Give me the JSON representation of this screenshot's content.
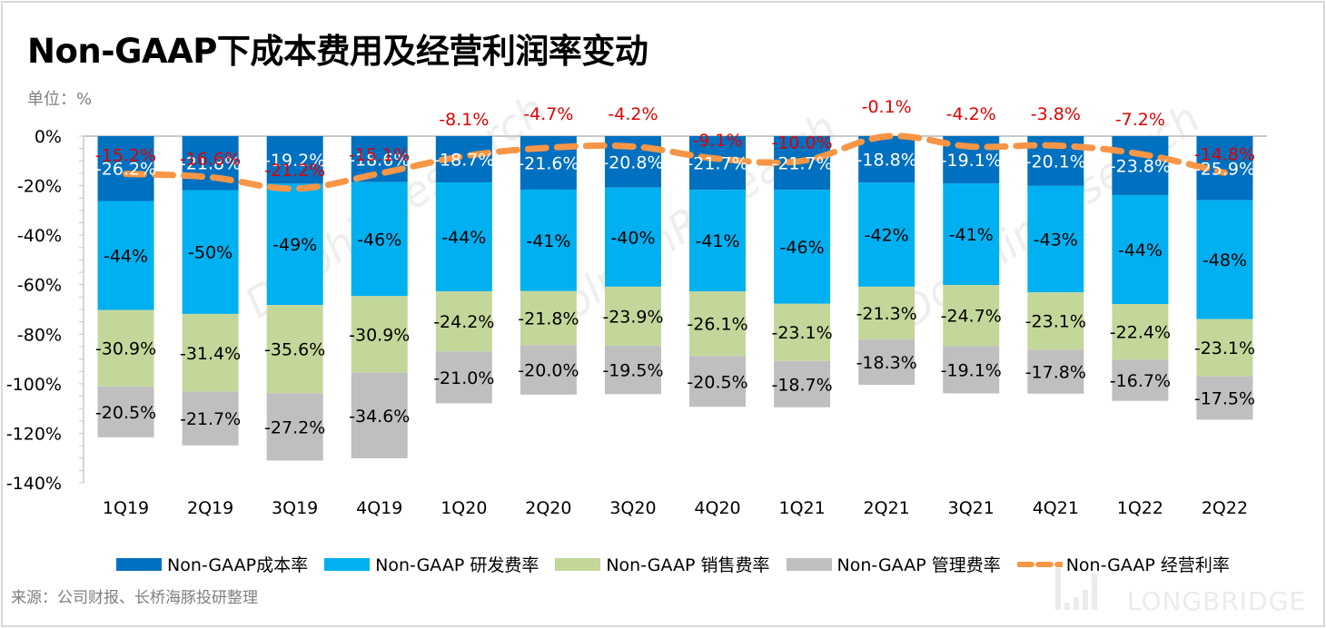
{
  "title": "Non-GAAP下成本费用及经营利润率变动",
  "unit_label": "单位：%",
  "source": "来源：公司财报、长桥海豚投研整理",
  "watermark": "LONGBRIDGE",
  "colors": {
    "cost": "#0070c0",
    "rd": "#00b0f0",
    "sales": "#c4d79b",
    "admin": "#bfbfbf",
    "op_margin": "#f79646",
    "op_label": "#e00000"
  },
  "chart_data": {
    "type": "bar",
    "stacked": true,
    "title": "Non-GAAP下成本费用及经营利润率变动",
    "xlabel": "",
    "ylabel": "单位：%",
    "ylim": [
      -140,
      0
    ],
    "yticks": [
      "0%",
      "-20%",
      "-40%",
      "-60%",
      "-80%",
      "-100%",
      "-120%",
      "-140%"
    ],
    "ytick_values": [
      0,
      -20,
      -40,
      -60,
      -80,
      -100,
      -120,
      -140
    ],
    "categories": [
      "1Q19",
      "2Q19",
      "3Q19",
      "4Q19",
      "1Q20",
      "2Q20",
      "3Q20",
      "4Q20",
      "1Q21",
      "2Q21",
      "3Q21",
      "4Q21",
      "1Q22",
      "2Q22"
    ],
    "series": [
      {
        "name": "Non-GAAP成本率",
        "kind": "bar",
        "values": [
          -26.2,
          -21.8,
          -19.2,
          -18.6,
          -18.7,
          -21.6,
          -20.8,
          -21.7,
          -21.7,
          -18.8,
          -19.1,
          -20.1,
          -23.8,
          -25.9
        ],
        "labels": [
          "-26.2%",
          "-21.8%",
          "-19.2%",
          "-18.6%",
          "-18.7%",
          "-21.6%",
          "-20.8%",
          "-21.7%",
          "-21.7%",
          "-18.8%",
          "-19.1%",
          "-20.1%",
          "-23.8%",
          "-25.9%"
        ]
      },
      {
        "name": "Non-GAAP 研发费率",
        "kind": "bar",
        "values": [
          -44,
          -50,
          -49,
          -46,
          -44,
          -41,
          -40,
          -41,
          -46,
          -42,
          -41,
          -43,
          -44,
          -48
        ],
        "labels": [
          "-44%",
          "-50%",
          "-49%",
          "-46%",
          "-44%",
          "-41%",
          "-40%",
          "-41%",
          "-46%",
          "-42%",
          "-41%",
          "-43%",
          "-44%",
          "-48%"
        ]
      },
      {
        "name": "Non-GAAP 销售费率",
        "kind": "bar",
        "values": [
          -30.9,
          -31.4,
          -35.6,
          -30.9,
          -24.2,
          -21.8,
          -23.9,
          -26.1,
          -23.1,
          -21.3,
          -24.7,
          -23.1,
          -22.4,
          -23.1
        ],
        "labels": [
          "-30.9%",
          "-31.4%",
          "-35.6%",
          "-30.9%",
          "-24.2%",
          "-21.8%",
          "-23.9%",
          "-26.1%",
          "-23.1%",
          "-21.3%",
          "-24.7%",
          "-23.1%",
          "-22.4%",
          "-23.1%"
        ]
      },
      {
        "name": "Non-GAAP 管理费率",
        "kind": "bar",
        "values": [
          -20.5,
          -21.7,
          -27.2,
          -34.6,
          -21.0,
          -20.0,
          -19.5,
          -20.5,
          -18.7,
          -18.3,
          -19.1,
          -17.8,
          -16.7,
          -17.5
        ],
        "labels": [
          "-20.5%",
          "-21.7%",
          "-27.2%",
          "-34.6%",
          "-21.0%",
          "-20.0%",
          "-19.5%",
          "-20.5%",
          "-18.7%",
          "-18.3%",
          "-19.1%",
          "-17.8%",
          "-16.7%",
          "-17.5%"
        ]
      },
      {
        "name": "Non-GAAP 经营利率",
        "kind": "line",
        "style": "dashed",
        "values": [
          -15.2,
          -16.6,
          -21.2,
          -15.1,
          -8.1,
          -4.7,
          -4.2,
          -9.1,
          -10.0,
          -0.1,
          -4.2,
          -3.8,
          -7.2,
          -14.8
        ],
        "labels": [
          "-15.2%",
          "-16.6%",
          "-21.2%",
          "-15.1%",
          "-8.1%",
          "-4.7%",
          "-4.2%",
          "-9.1%",
          "-10.0%",
          "-0.1%",
          "-4.2%",
          "-3.8%",
          "-7.2%",
          "-14.8%"
        ]
      }
    ],
    "legend": [
      "Non-GAAP成本率",
      "Non-GAAP 研发费率",
      "Non-GAAP 销售费率",
      "Non-GAAP 管理费率",
      "Non-GAAP 经营利率"
    ],
    "legend_position": "bottom",
    "grid": false
  }
}
